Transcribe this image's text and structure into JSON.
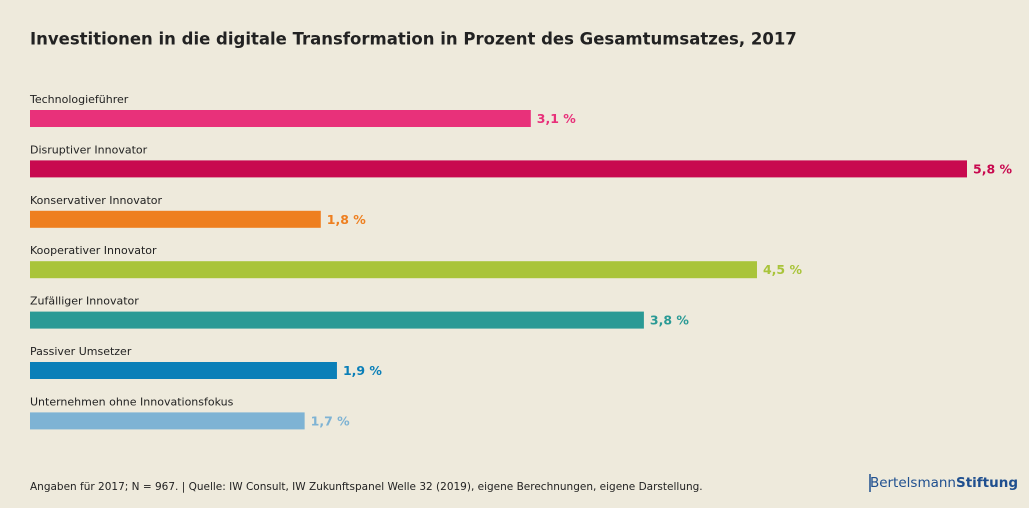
{
  "chart_data": {
    "type": "bar",
    "orientation": "horizontal",
    "title": "Investitionen in die digitale Transformation in Prozent des Gesamtumsatzes, 2017",
    "categories": [
      "Technologieführer",
      "Disruptiver Innovator",
      "Konservativer Innovator",
      "Kooperativer Innovator",
      "Zufälliger Innovator",
      "Passiver Umsetzer",
      "Unternehmen ohne Innovationsfokus"
    ],
    "values": [
      3.1,
      5.8,
      1.8,
      4.5,
      3.8,
      1.9,
      1.7
    ],
    "value_labels": [
      "3,1 %",
      "5,8 %",
      "1,8 %",
      "4,5 %",
      "3,8 %",
      "1,9 %",
      "1,7 %"
    ],
    "colors": [
      "#e8317a",
      "#c8094f",
      "#ee7f1f",
      "#a9c43a",
      "#2a9a95",
      "#0a7fb8",
      "#7eb3d4"
    ],
    "footer": "Angaben für 2017; N = 967.  |  Quelle: IW Consult, IW Zukunftspanel Welle 32 (2019), eigene Berechnungen, eigene Darstellung.",
    "brand": {
      "light": "Bertelsmann",
      "bold": "Stiftung"
    }
  }
}
